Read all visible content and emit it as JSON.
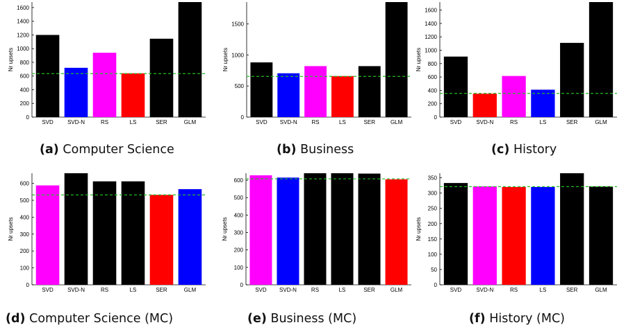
{
  "colors": {
    "black": "#000000",
    "blue": "#0000ff",
    "magenta": "#ff00ff",
    "red": "#ff0000",
    "baseline": "#22bb22"
  },
  "chart_data": [
    {
      "id": "a",
      "type": "bar",
      "tag": "(a)",
      "caption": "Computer Science",
      "ylabel": "Nr upsets",
      "ylim": [
        0,
        1680
      ],
      "yticks": [
        0,
        200,
        400,
        600,
        800,
        1000,
        1200,
        1400,
        1600
      ],
      "categories": [
        "SVD",
        "SVD-N",
        "RS",
        "LS",
        "SER",
        "GLM"
      ],
      "values": [
        1200,
        720,
        940,
        640,
        1145,
        1680
      ],
      "colors": [
        "black",
        "blue",
        "magenta",
        "red",
        "black",
        "black"
      ],
      "baseline": 635
    },
    {
      "id": "b",
      "type": "bar",
      "tag": "(b)",
      "caption": "Business",
      "ylabel": "Nr upsets",
      "ylim": [
        0,
        1850
      ],
      "yticks": [
        0,
        500,
        1000,
        1500
      ],
      "categories": [
        "SVD",
        "SVD-N",
        "RS",
        "LS",
        "SER",
        "GLM"
      ],
      "values": [
        880,
        705,
        820,
        660,
        820,
        1850
      ],
      "colors": [
        "black",
        "blue",
        "magenta",
        "red",
        "black",
        "black"
      ],
      "baseline": 655
    },
    {
      "id": "c",
      "type": "bar",
      "tag": "(c)",
      "caption": "History",
      "ylabel": "Nr upsets",
      "ylim": [
        0,
        1720
      ],
      "yticks": [
        0,
        200,
        400,
        600,
        800,
        1000,
        1200,
        1400,
        1600
      ],
      "categories": [
        "SVD",
        "SVD-N",
        "RS",
        "LS",
        "SER",
        "GLM"
      ],
      "values": [
        905,
        350,
        615,
        410,
        1110,
        1720
      ],
      "colors": [
        "black",
        "red",
        "magenta",
        "blue",
        "black",
        "black"
      ],
      "baseline": 355
    },
    {
      "id": "d",
      "type": "bar",
      "tag": "(d)",
      "caption": "Computer Science (MC)",
      "ylabel": "Nr upsets",
      "ylim": [
        0,
        660
      ],
      "yticks": [
        0,
        100,
        200,
        300,
        400,
        500,
        600
      ],
      "categories": [
        "SVD",
        "SVD-N",
        "RS",
        "LS",
        "SER",
        "GLM"
      ],
      "values": [
        588,
        660,
        612,
        612,
        532,
        566
      ],
      "colors": [
        "magenta",
        "black",
        "black",
        "black",
        "red",
        "blue"
      ],
      "baseline": 532
    },
    {
      "id": "e",
      "type": "bar",
      "tag": "(e)",
      "caption": "Business (MC)",
      "ylabel": "Nr upsets",
      "ylim": [
        0,
        640
      ],
      "yticks": [
        0,
        100,
        200,
        300,
        400,
        500,
        600
      ],
      "categories": [
        "SVD",
        "SVD-N",
        "RS",
        "LS",
        "SER",
        "GLM"
      ],
      "values": [
        628,
        615,
        640,
        640,
        638,
        605
      ],
      "colors": [
        "magenta",
        "blue",
        "black",
        "black",
        "black",
        "red"
      ],
      "baseline": 608
    },
    {
      "id": "f",
      "type": "bar",
      "tag": "(f)",
      "caption": "History (MC)",
      "ylabel": "Nr upsets",
      "ylim": [
        0,
        365
      ],
      "yticks": [
        0,
        50,
        100,
        150,
        200,
        250,
        300,
        350
      ],
      "categories": [
        "SVD",
        "SVD-N",
        "RS",
        "LS",
        "SER",
        "GLM"
      ],
      "values": [
        333,
        322,
        320,
        320,
        365,
        322
      ],
      "colors": [
        "black",
        "magenta",
        "red",
        "blue",
        "black",
        "black"
      ],
      "baseline": 321
    }
  ]
}
